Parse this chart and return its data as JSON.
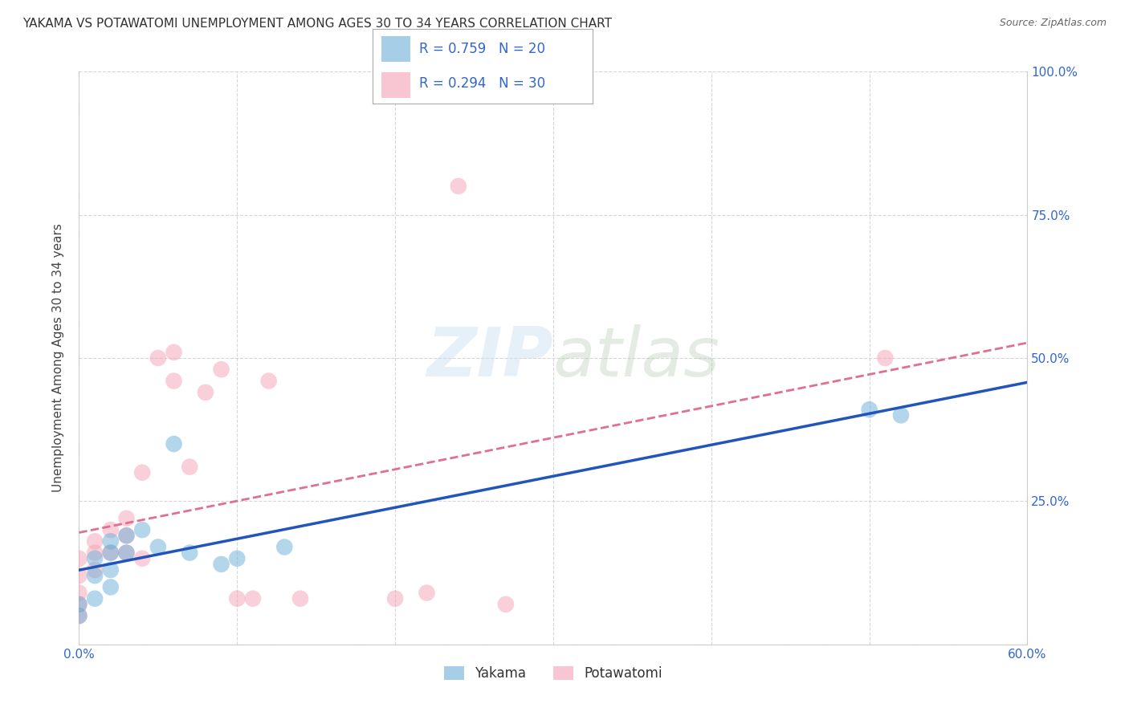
{
  "title": "YAKAMA VS POTAWATOMI UNEMPLOYMENT AMONG AGES 30 TO 34 YEARS CORRELATION CHART",
  "source": "Source: ZipAtlas.com",
  "ylabel": "Unemployment Among Ages 30 to 34 years",
  "xlim": [
    0.0,
    0.6
  ],
  "ylim": [
    0.0,
    1.0
  ],
  "xticks": [
    0.0,
    0.1,
    0.2,
    0.3,
    0.4,
    0.5,
    0.6
  ],
  "xticklabels": [
    "0.0%",
    "",
    "",
    "",
    "",
    "",
    "60.0%"
  ],
  "yticks": [
    0.0,
    0.25,
    0.5,
    0.75,
    1.0
  ],
  "yticklabels": [
    "",
    "25.0%",
    "50.0%",
    "75.0%",
    "100.0%"
  ],
  "yakama_color": "#6baed6",
  "potawatomi_color": "#f4a0b5",
  "yakama_R": 0.759,
  "yakama_N": 20,
  "potawatomi_R": 0.294,
  "potawatomi_N": 30,
  "yakama_x": [
    0.0,
    0.0,
    0.01,
    0.01,
    0.01,
    0.02,
    0.02,
    0.02,
    0.02,
    0.03,
    0.03,
    0.04,
    0.05,
    0.06,
    0.07,
    0.09,
    0.1,
    0.13,
    0.5,
    0.52
  ],
  "yakama_y": [
    0.05,
    0.07,
    0.08,
    0.12,
    0.15,
    0.1,
    0.13,
    0.16,
    0.18,
    0.16,
    0.19,
    0.2,
    0.17,
    0.35,
    0.16,
    0.14,
    0.15,
    0.17,
    0.41,
    0.4
  ],
  "potawatomi_x": [
    0.0,
    0.0,
    0.0,
    0.0,
    0.0,
    0.01,
    0.01,
    0.01,
    0.02,
    0.02,
    0.03,
    0.03,
    0.03,
    0.04,
    0.04,
    0.05,
    0.06,
    0.06,
    0.07,
    0.08,
    0.09,
    0.1,
    0.11,
    0.12,
    0.14,
    0.2,
    0.22,
    0.24,
    0.27,
    0.51
  ],
  "potawatomi_y": [
    0.05,
    0.07,
    0.09,
    0.12,
    0.15,
    0.13,
    0.16,
    0.18,
    0.16,
    0.2,
    0.16,
    0.19,
    0.22,
    0.15,
    0.3,
    0.5,
    0.51,
    0.46,
    0.31,
    0.44,
    0.48,
    0.08,
    0.08,
    0.46,
    0.08,
    0.08,
    0.09,
    0.8,
    0.07,
    0.5
  ],
  "watermark_line1": "ZIP",
  "watermark_line2": "atlas",
  "background_color": "#ffffff",
  "grid_color": "#cccccc",
  "legend_text_color": "#3366cc",
  "title_color": "#333333",
  "yakama_line_color": "#2255bb",
  "potawatomi_line_color": "#e07090"
}
